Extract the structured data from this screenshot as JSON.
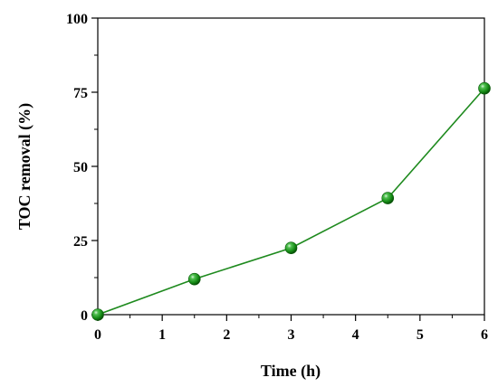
{
  "chart_data": {
    "type": "line",
    "title": "",
    "xlabel": "Time (h)",
    "ylabel": "TOC removal (%)",
    "xlim": [
      0,
      6
    ],
    "ylim": [
      0,
      100
    ],
    "x_ticks": [
      0,
      1,
      2,
      3,
      4,
      5,
      6
    ],
    "y_ticks": [
      0,
      25,
      50,
      75,
      100
    ],
    "grid": false,
    "series": [
      {
        "x": [
          0,
          1.5,
          3,
          4.5,
          6
        ],
        "values": [
          0,
          12,
          22.5,
          39.3,
          76.3
        ],
        "color": "#1e8a1e",
        "marker": "sphere"
      }
    ]
  }
}
